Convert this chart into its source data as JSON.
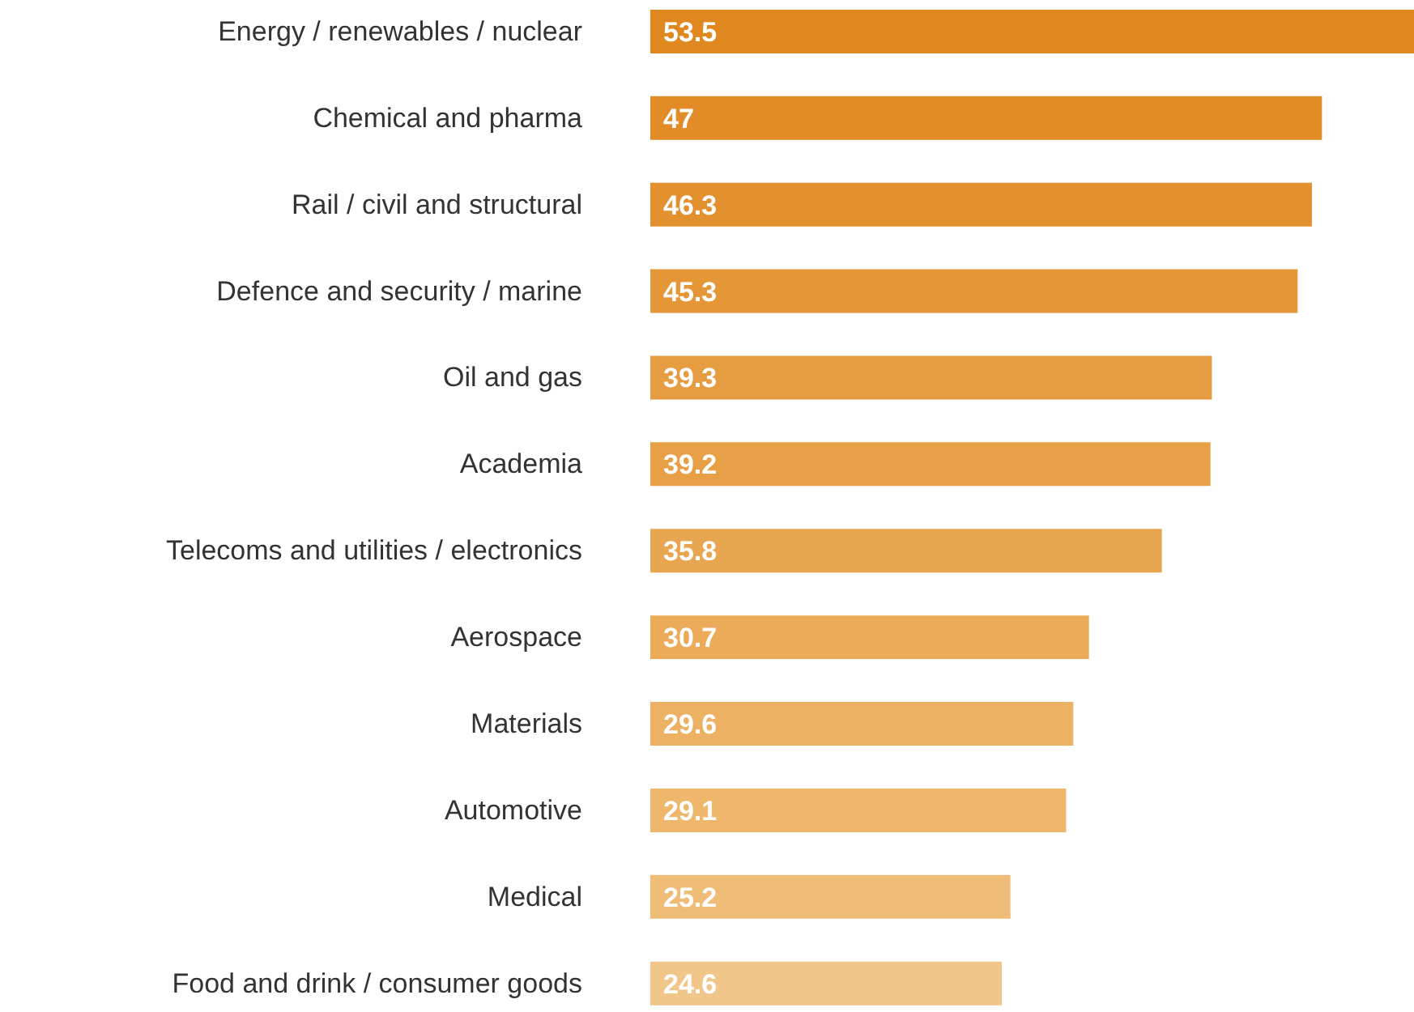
{
  "chart_data": {
    "type": "bar",
    "orientation": "horizontal",
    "data_labels": true,
    "categories": [
      "Energy / renewables / nuclear",
      "Chemical and pharma",
      "Rail / civil and structural",
      "Defence and security / marine",
      "Oil and gas",
      "Academia",
      "Telecoms and utilities / electronics",
      "Aerospace",
      "Materials",
      "Automotive",
      "Medical",
      "Food and drink / consumer goods"
    ],
    "values": [
      53.5,
      47,
      46.3,
      45.3,
      39.3,
      39.2,
      35.8,
      30.7,
      29.6,
      29.1,
      25.2,
      24.6
    ],
    "colors": [
      "#e08820",
      "#e28c27",
      "#e3912f",
      "#e59636",
      "#e69c40",
      "#e8a047",
      "#e9a650",
      "#ebab59",
      "#ecb163",
      "#eeb76c",
      "#efbd78",
      "#f1c68a"
    ]
  }
}
